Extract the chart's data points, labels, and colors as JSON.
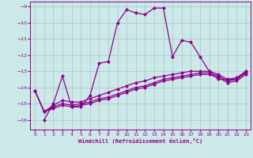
{
  "xlabel": "Windchill (Refroidissement éolien,°C)",
  "bg_color": "#cce8e8",
  "grid_color": "#aacccc",
  "line_color": "#8b008b",
  "x_ticks": [
    0,
    1,
    2,
    3,
    4,
    5,
    6,
    7,
    8,
    9,
    10,
    11,
    12,
    13,
    14,
    15,
    16,
    17,
    18,
    19,
    20,
    21,
    22,
    23
  ],
  "y_ticks": [
    -9,
    -10,
    -11,
    -12,
    -13,
    -14,
    -15,
    -16
  ],
  "ylim": [
    -16.6,
    -8.7
  ],
  "xlim": [
    -0.5,
    23.5
  ],
  "series": [
    [
      null,
      -16.0,
      -15.0,
      -13.3,
      -15.2,
      -15.2,
      -14.5,
      -12.5,
      -12.4,
      -10.0,
      -9.2,
      -9.4,
      -9.5,
      -9.1,
      -9.1,
      -12.1,
      -11.1,
      -11.2,
      -12.1,
      -13.0,
      -13.5,
      -13.5,
      -13.5,
      -13.0
    ],
    [
      -14.2,
      -15.5,
      -15.1,
      -14.8,
      -14.9,
      -14.9,
      -14.7,
      -14.5,
      -14.3,
      -14.1,
      -13.9,
      -13.7,
      -13.6,
      -13.4,
      -13.3,
      -13.2,
      -13.1,
      -13.0,
      -13.0,
      -13.0,
      -13.2,
      -13.5,
      -13.4,
      -13.0
    ],
    [
      -14.2,
      -15.5,
      -15.2,
      -15.0,
      -15.1,
      -15.0,
      -14.9,
      -14.7,
      -14.6,
      -14.4,
      -14.2,
      -14.0,
      -13.9,
      -13.7,
      -13.5,
      -13.4,
      -13.3,
      -13.2,
      -13.1,
      -13.1,
      -13.3,
      -13.6,
      -13.5,
      -13.1
    ],
    [
      -14.2,
      -15.5,
      -15.3,
      -15.1,
      -15.2,
      -15.1,
      -15.0,
      -14.8,
      -14.7,
      -14.5,
      -14.3,
      -14.1,
      -14.0,
      -13.8,
      -13.6,
      -13.5,
      -13.4,
      -13.3,
      -13.2,
      -13.2,
      -13.4,
      -13.7,
      -13.6,
      -13.2
    ]
  ],
  "marker_size": 2.5,
  "linewidth": 0.9
}
